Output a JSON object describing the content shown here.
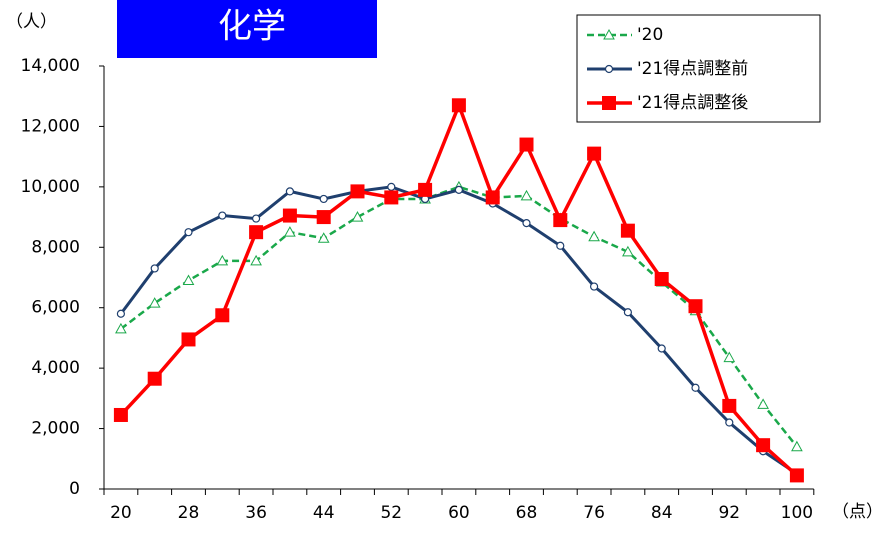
{
  "chart_data": {
    "type": "line",
    "title": "化学",
    "y_unit": "（人）",
    "x_unit": "（点）",
    "categories": [
      20,
      null,
      28,
      null,
      36,
      null,
      44,
      null,
      52,
      null,
      60,
      null,
      68,
      null,
      76,
      null,
      84,
      null,
      92,
      null,
      100
    ],
    "ylim": [
      0,
      14000
    ],
    "yticks": [
      0,
      {
        "value": 2000,
        "label": "2,000"
      },
      {
        "value": 4000,
        "label": "4,000"
      },
      {
        "value": 6000,
        "label": "6,000"
      },
      {
        "value": 8000,
        "label": "8,000"
      },
      {
        "value": 10000,
        "label": "10,000"
      },
      {
        "value": 12000,
        "label": "12,000"
      },
      {
        "value": 14000,
        "label": "14,000"
      }
    ],
    "grid": false,
    "legend": "top-right",
    "series": [
      {
        "name": "'20",
        "color": "#1aa84a",
        "marker": "triangle",
        "dashed": true,
        "values": [
          5300,
          6150,
          6900,
          7550,
          7550,
          8500,
          8300,
          9000,
          9600,
          9600,
          10000,
          9650,
          9700,
          8950,
          8350,
          7850,
          6850,
          5900,
          4350,
          2800,
          1400
        ]
      },
      {
        "name": "'21得点調整前",
        "color": "#1f3f6e",
        "marker": "circle",
        "dashed": false,
        "values": [
          5800,
          7300,
          8500,
          9050,
          8950,
          9850,
          9600,
          9850,
          10000,
          9600,
          9900,
          9450,
          8800,
          8050,
          6700,
          5850,
          4650,
          3350,
          2200,
          1250,
          500
        ]
      },
      {
        "name": "'21得点調整後",
        "color": "#ff0000",
        "marker": "square",
        "dashed": false,
        "values": [
          2450,
          3650,
          4950,
          5750,
          8500,
          9050,
          9000,
          9850,
          9650,
          9900,
          12700,
          9650,
          11400,
          8900,
          11100,
          8550,
          6950,
          6050,
          2750,
          1450,
          450
        ]
      }
    ]
  }
}
